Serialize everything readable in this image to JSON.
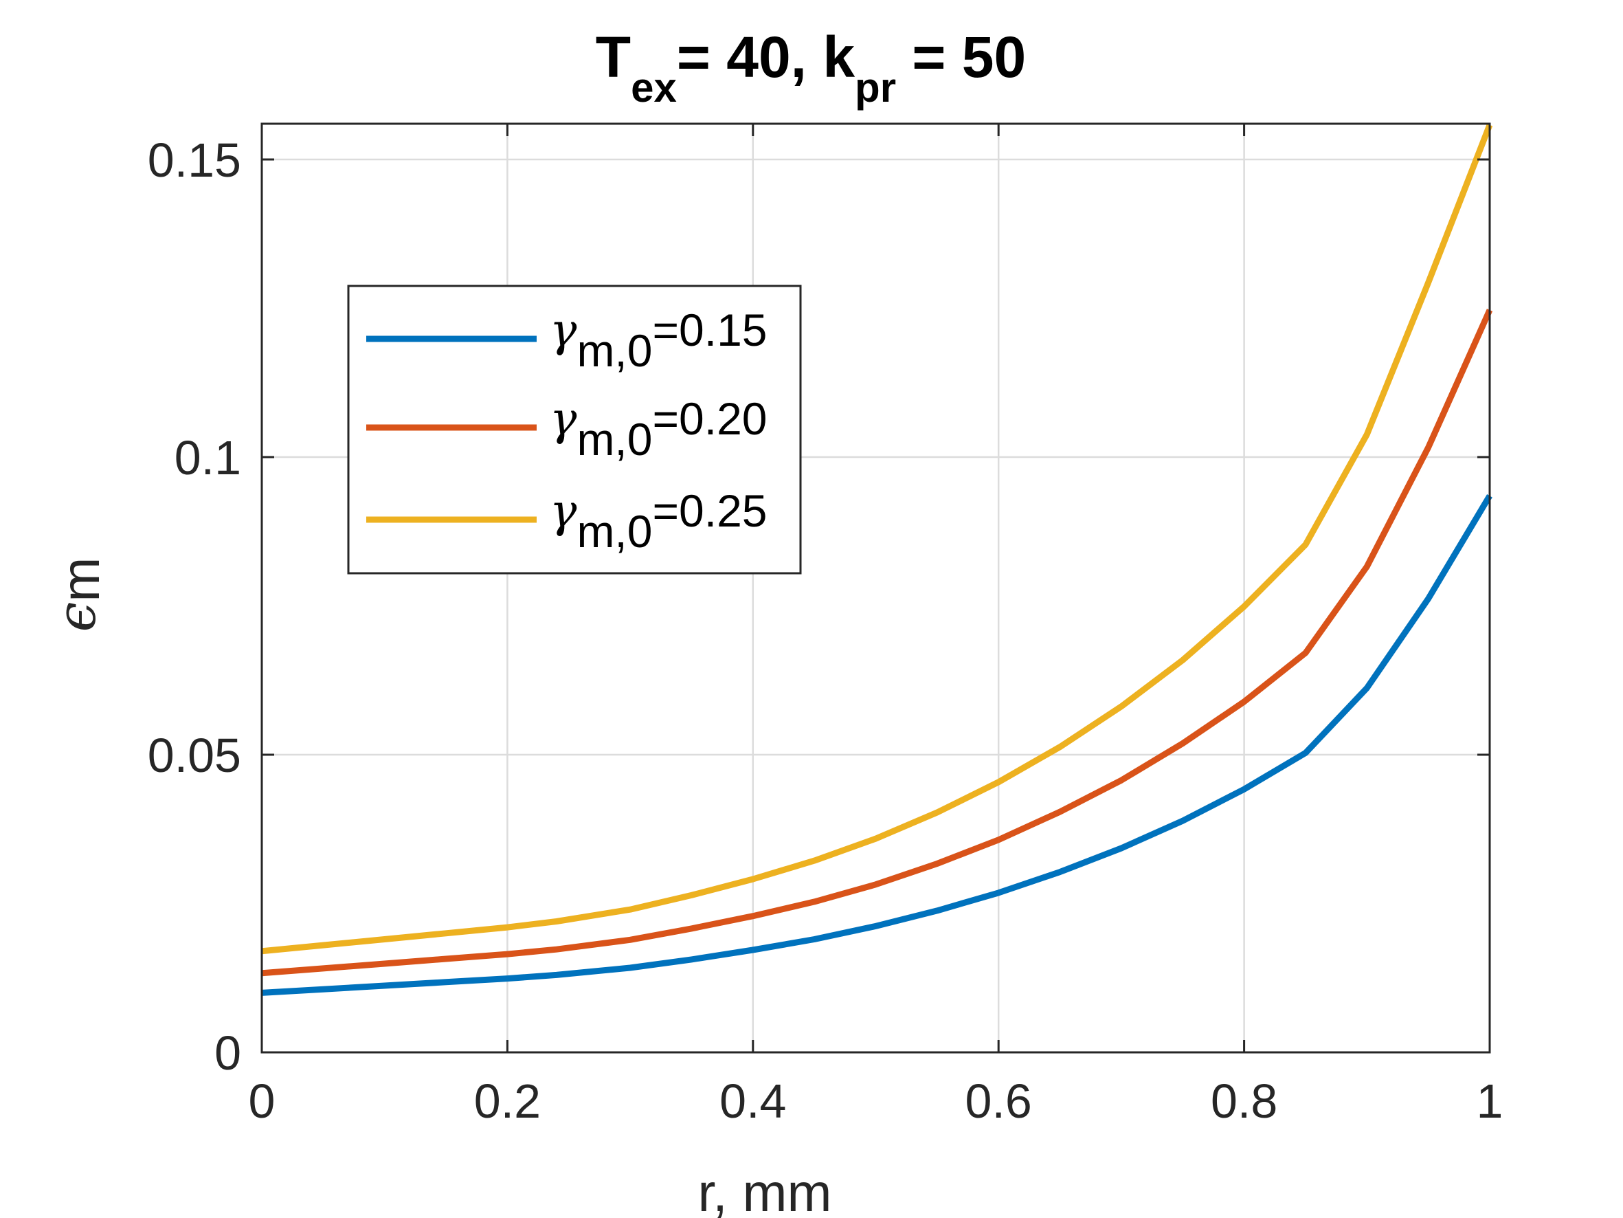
{
  "chart_data": {
    "type": "line",
    "title": {
      "parts": [
        {
          "text": "T",
          "sub": "ex"
        },
        {
          "text": "= 40, k",
          "sub": "pr"
        },
        {
          "text": " =  50",
          "sub": ""
        }
      ]
    },
    "xlabel": "r, mm",
    "ylabel": {
      "symbol": "ϵ",
      "sub": "m"
    },
    "xlim": [
      0,
      1
    ],
    "ylim": [
      0,
      0.156
    ],
    "xticks": [
      0,
      0.2,
      0.4,
      0.6,
      0.8,
      1
    ],
    "xtick_labels": [
      "0",
      "0.2",
      "0.4",
      "0.6",
      "0.8",
      "1"
    ],
    "yticks": [
      0,
      0.05,
      0.1,
      0.15
    ],
    "ytick_labels": [
      "0",
      "0.05",
      "0.1",
      "0.15"
    ],
    "grid": true,
    "legend_position": "upper-left",
    "x": [
      0,
      0.05,
      0.1,
      0.15,
      0.2,
      0.24,
      0.3,
      0.35,
      0.4,
      0.45,
      0.5,
      0.55,
      0.6,
      0.65,
      0.7,
      0.75,
      0.8,
      0.85,
      0.9,
      0.95,
      1.0
    ],
    "series": [
      {
        "name": "γ_m,0=0.15",
        "label_symbol": "γ",
        "label_sub": "m,0",
        "label_value": "=0.15",
        "color": "#0072BD",
        "values": [
          0.01,
          0.0106,
          0.0112,
          0.0118,
          0.0124,
          0.013,
          0.0142,
          0.0156,
          0.0172,
          0.019,
          0.0212,
          0.0238,
          0.0268,
          0.0303,
          0.0343,
          0.0389,
          0.0442,
          0.0503,
          0.0612,
          0.0762,
          0.0935
        ]
      },
      {
        "name": "γ_m,0=0.20",
        "label_symbol": "γ",
        "label_sub": "m,0",
        "label_value": "=0.20",
        "color": "#D95319",
        "values": [
          0.0133,
          0.0141,
          0.0149,
          0.0157,
          0.0165,
          0.0173,
          0.0189,
          0.0208,
          0.0229,
          0.0253,
          0.0282,
          0.0317,
          0.0357,
          0.0404,
          0.0457,
          0.0519,
          0.0589,
          0.0671,
          0.0816,
          0.1016,
          0.1247
        ]
      },
      {
        "name": "γ_m,0=0.25",
        "label_symbol": "γ",
        "label_sub": "m,0",
        "label_value": "=0.25",
        "color": "#EDB120",
        "values": [
          0.017,
          0.018,
          0.019,
          0.02,
          0.021,
          0.022,
          0.024,
          0.0264,
          0.0291,
          0.0322,
          0.0359,
          0.0403,
          0.0454,
          0.0513,
          0.0581,
          0.0659,
          0.0749,
          0.0853,
          0.1038,
          0.1293,
          0.1558
        ]
      }
    ]
  }
}
